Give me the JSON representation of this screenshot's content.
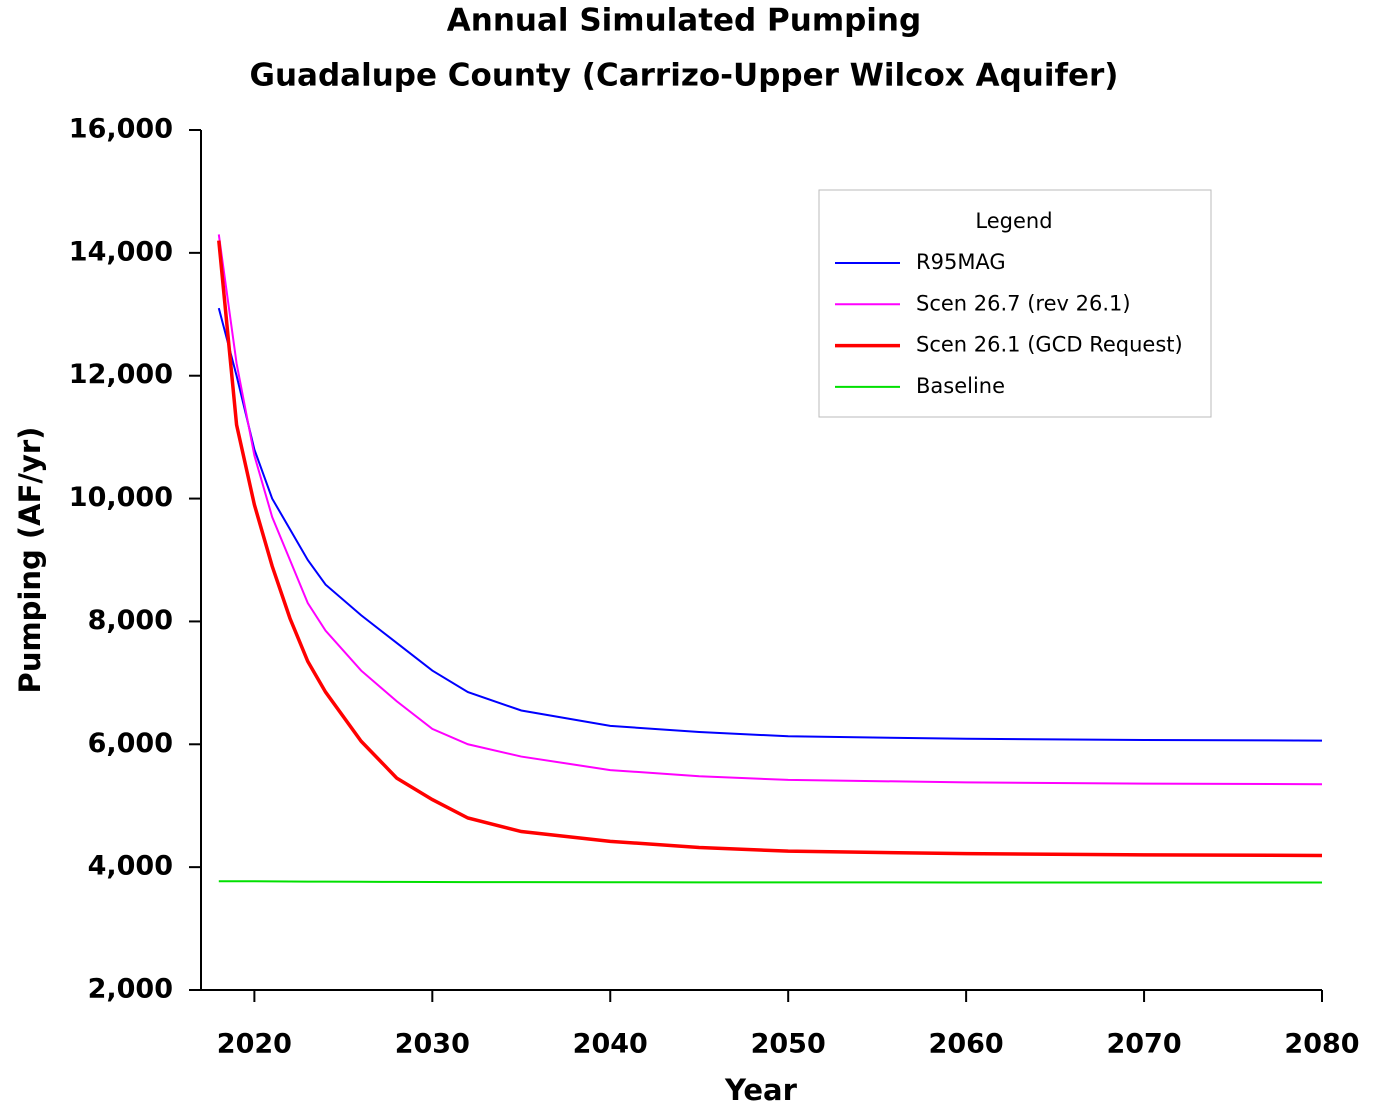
{
  "chart_data": {
    "type": "line",
    "title": "Annual Simulated Pumping",
    "subtitle": "Guadalupe County (Carrizo-Upper Wilcox Aquifer)",
    "xlabel": "Year",
    "ylabel": "Pumping (AF/yr)",
    "legend_title": "Legend",
    "legend": "upper right",
    "x": [
      2018,
      2019,
      2020,
      2021,
      2022,
      2023,
      2024,
      2026,
      2028,
      2030,
      2032,
      2035,
      2040,
      2045,
      2050,
      2060,
      2070,
      2080
    ],
    "series": [
      {
        "name": "R95MAG",
        "color": "#0000ff",
        "values": [
          13100,
          12000,
          10800,
          10000,
          9500,
          9000,
          8600,
          8100,
          7650,
          7200,
          6850,
          6550,
          6300,
          6200,
          6130,
          6090,
          6070,
          6060
        ]
      },
      {
        "name": "Scen 26.7 (rev 26.1)",
        "color": "#ff00ff",
        "values": [
          14300,
          12200,
          10700,
          9700,
          9000,
          8300,
          7850,
          7200,
          6700,
          6250,
          6000,
          5800,
          5580,
          5480,
          5420,
          5380,
          5360,
          5350
        ]
      },
      {
        "name": "Scen 26.1 (GCD Request)",
        "color": "#ff0000",
        "values": [
          14200,
          11200,
          9900,
          8900,
          8050,
          7350,
          6850,
          6050,
          5450,
          5100,
          4800,
          4580,
          4420,
          4320,
          4260,
          4220,
          4200,
          4190
        ]
      },
      {
        "name": "Baseline",
        "color": "#00e000",
        "values": [
          3770,
          3770,
          3770,
          3768,
          3766,
          3765,
          3764,
          3762,
          3760,
          3758,
          3757,
          3756,
          3754,
          3753,
          3752,
          3751,
          3750,
          3750
        ]
      }
    ],
    "xlim": [
      2017,
      2080
    ],
    "ylim": [
      2000,
      16000
    ],
    "xticks": [
      2020,
      2030,
      2040,
      2050,
      2060,
      2070,
      2080
    ],
    "yticks": [
      {
        "value": 2000,
        "label": "2,000"
      },
      {
        "value": 4000,
        "label": "4,000"
      },
      {
        "value": 6000,
        "label": "6,000"
      },
      {
        "value": 8000,
        "label": "8,000"
      },
      {
        "value": 10000,
        "label": "10,000"
      },
      {
        "value": 12000,
        "label": "12,000"
      },
      {
        "value": 14000,
        "label": "14,000"
      },
      {
        "value": 16000,
        "label": "16,000"
      }
    ]
  }
}
